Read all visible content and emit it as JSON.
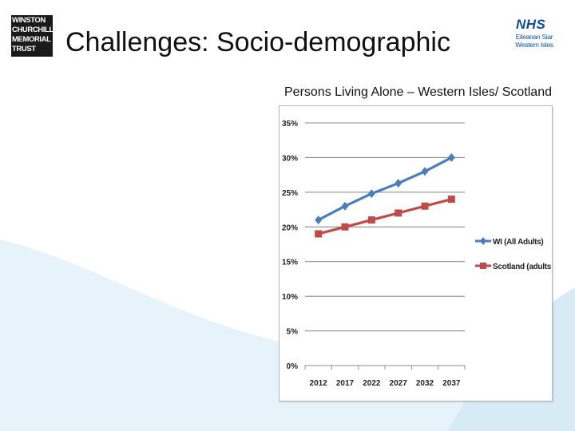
{
  "slide": {
    "title": "Challenges: Socio-demographic",
    "chart_caption": "Persons Living Alone – Western Isles/ Scotland"
  },
  "logos": {
    "wcmt_lines": [
      "WINSTON",
      "CHURCHILL",
      "MEMORIAL",
      "TRUST"
    ],
    "nhs_badge": "NHS",
    "nhs_lines": [
      "Eileanan Siar",
      "Western Isles"
    ]
  },
  "colors": {
    "wi_series": "#4a7ebb",
    "scotland_series": "#be4b48",
    "wave": "#dbeef8",
    "nhs_blue": "#0b4fa5"
  },
  "chart_data": {
    "type": "line",
    "title": "Persons Living Alone – Western Isles/ Scotland",
    "x": [
      "2012",
      "2017",
      "2022",
      "2027",
      "2032",
      "2037"
    ],
    "series": [
      {
        "name": "WI (All Adults)",
        "values": [
          21,
          23,
          24.8,
          26.3,
          28,
          30
        ],
        "marker": "diamond"
      },
      {
        "name": "Scotland (adults)",
        "values": [
          19,
          20,
          21,
          22,
          23,
          24
        ],
        "marker": "square"
      }
    ],
    "ylim": [
      0,
      35
    ],
    "yticks": [
      "0%",
      "5%",
      "10%",
      "15%",
      "20%",
      "25%",
      "30%",
      "35%"
    ],
    "ytick_values": [
      0,
      5,
      10,
      15,
      20,
      25,
      30,
      35
    ],
    "grid": true,
    "legend": "right"
  }
}
